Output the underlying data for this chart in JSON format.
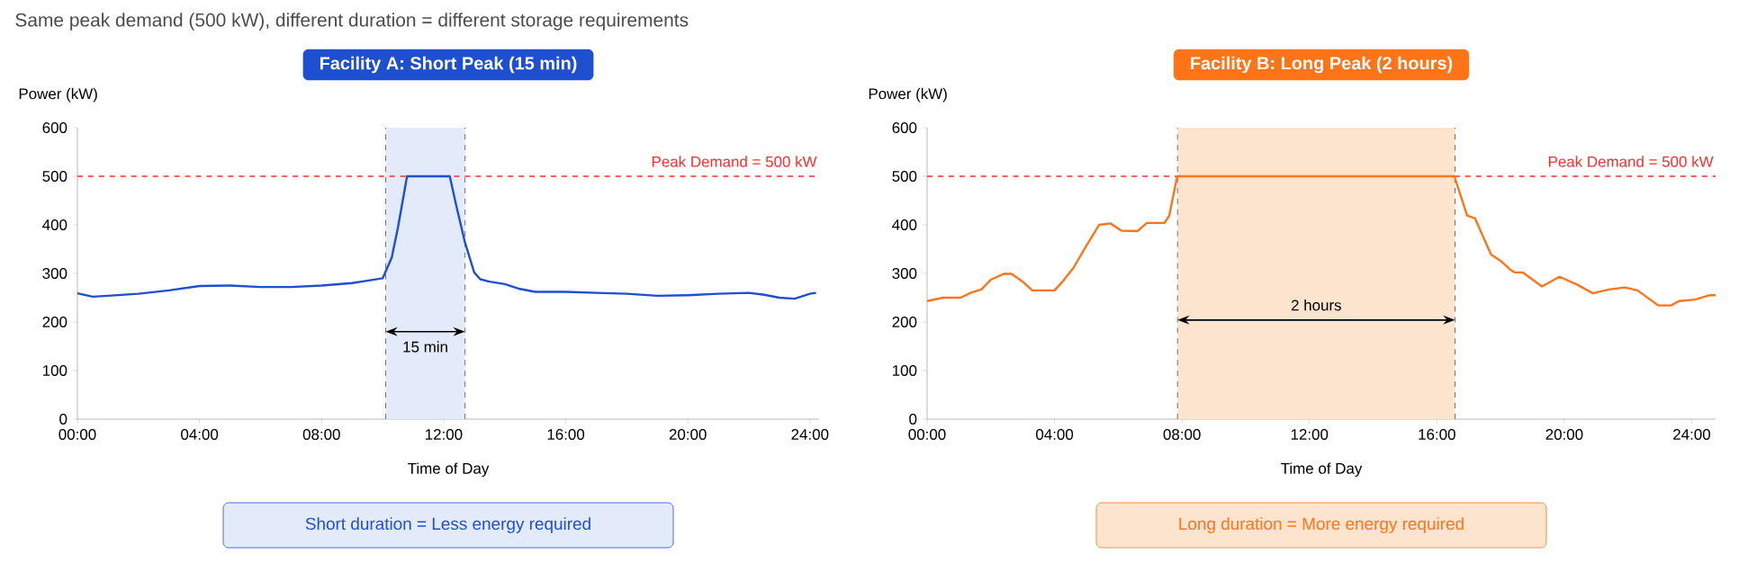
{
  "chart_data": [
    {
      "type": "line",
      "title": "Facility A: Short Peak (15 min)",
      "xlabel": "Time of Day",
      "ylabel": "Power (kW)",
      "annotations": [
        "Same peak demand (500 kW), different duration = different storage requirements",
        "Short duration = Less energy required"
      ],
      "series": [
        {
          "color": "#1f4fd1",
          "x": [
            0,
            0.5,
            1,
            2,
            3,
            4,
            5,
            6,
            7,
            8,
            9,
            9.5,
            10,
            10.3,
            10.5,
            10.8,
            12.2,
            12.4,
            12.7,
            13.0,
            13.2,
            13.5,
            14,
            14.5,
            15,
            16,
            17,
            18,
            19,
            20,
            21,
            22,
            22.5,
            23,
            23.5,
            24,
            24.2
          ],
          "values": [
            259,
            252,
            254,
            258,
            265,
            274,
            275,
            272,
            272,
            275,
            280,
            285,
            290,
            333,
            394,
            500,
            500,
            443,
            363,
            302,
            288,
            283,
            278,
            268,
            262,
            262,
            260,
            258,
            254,
            255,
            258,
            260,
            256,
            250,
            248,
            258,
            260
          ]
        }
      ],
      "xlim": [
        0,
        24.3
      ],
      "ylim": [
        0,
        600
      ],
      "xticks": [
        {
          "value": 0,
          "label": "00:00"
        },
        {
          "value": 4,
          "label": "04:00"
        },
        {
          "value": 8,
          "label": "08:00"
        },
        {
          "value": 12,
          "label": "12:00"
        },
        {
          "value": 16,
          "label": "16:00"
        },
        {
          "value": 20,
          "label": "20:00"
        },
        {
          "value": 24,
          "label": "24:00"
        }
      ],
      "yticks": [
        0,
        100,
        200,
        300,
        400,
        500,
        600
      ],
      "ref_lines": [
        {
          "axis": "y",
          "value": 500,
          "label": "Peak Demand = 500 kW",
          "color": "#ff2a2a",
          "line_style": "dashed"
        },
        {
          "axis": "x",
          "value": 10.1,
          "color": "#4c4c4c",
          "line_style": "dashed"
        },
        {
          "axis": "x",
          "value": 12.7,
          "color": "#4c4c4c",
          "line_style": "dashed"
        }
      ],
      "bands": [
        {
          "axis": "x",
          "from": 10.1,
          "to": 12.7,
          "label": "15 min",
          "color": "#e3ebfa"
        }
      ]
    },
    {
      "type": "line",
      "title": "Facility B: Long Peak (2 hours)",
      "xlabel": "Time of Day",
      "ylabel": "Power (kW)",
      "annotations": [
        "Long duration = More energy required"
      ],
      "series": [
        {
          "color": "#ff7417",
          "x": [
            0,
            0.5,
            1.05,
            1.4,
            1.7,
            2.0,
            2.4,
            2.65,
            3.0,
            3.3,
            4.0,
            4.25,
            4.6,
            5.0,
            5.4,
            5.75,
            6.1,
            6.6,
            6.9,
            7.45,
            7.6,
            7.85,
            16.55,
            16.95,
            17.2,
            17.7,
            18.0,
            18.3,
            18.45,
            18.7,
            19.3,
            19.85,
            20.4,
            20.9,
            21.4,
            21.9,
            22.3,
            22.95,
            23.35,
            23.6,
            24.1,
            24.55,
            24.75
          ],
          "values": [
            243,
            250,
            250,
            261,
            267,
            287,
            299,
            299,
            283,
            265,
            265,
            283,
            312,
            357,
            400,
            403,
            388,
            387,
            404,
            404,
            419,
            500,
            500,
            419,
            413,
            339,
            326,
            308,
            302,
            302,
            273,
            293,
            277,
            259,
            267,
            271,
            265,
            234,
            234,
            243,
            246,
            255,
            255
          ]
        }
      ],
      "xlim": [
        0,
        24.75
      ],
      "ylim": [
        0,
        600
      ],
      "xticks": [
        {
          "value": 0,
          "label": "00:00"
        },
        {
          "value": 4,
          "label": "04:00"
        },
        {
          "value": 8,
          "label": "08:00"
        },
        {
          "value": 12,
          "label": "12:00"
        },
        {
          "value": 16,
          "label": "16:00"
        },
        {
          "value": 20,
          "label": "20:00"
        },
        {
          "value": 24,
          "label": "24:00"
        }
      ],
      "yticks": [
        0,
        100,
        200,
        300,
        400,
        500,
        600
      ],
      "ref_lines": [
        {
          "axis": "y",
          "value": 500,
          "label": "Peak Demand = 500 kW",
          "color": "#ff2a2a",
          "line_style": "dashed"
        },
        {
          "axis": "x",
          "value": 7.86,
          "color": "#4c4c4c",
          "line_style": "dashed"
        },
        {
          "axis": "x",
          "value": 16.57,
          "color": "#4c4c4c",
          "line_style": "dashed"
        }
      ],
      "bands": [
        {
          "axis": "x",
          "from": 7.86,
          "to": 16.57,
          "label": "2 hours",
          "color": "#fde4cf"
        }
      ]
    }
  ]
}
